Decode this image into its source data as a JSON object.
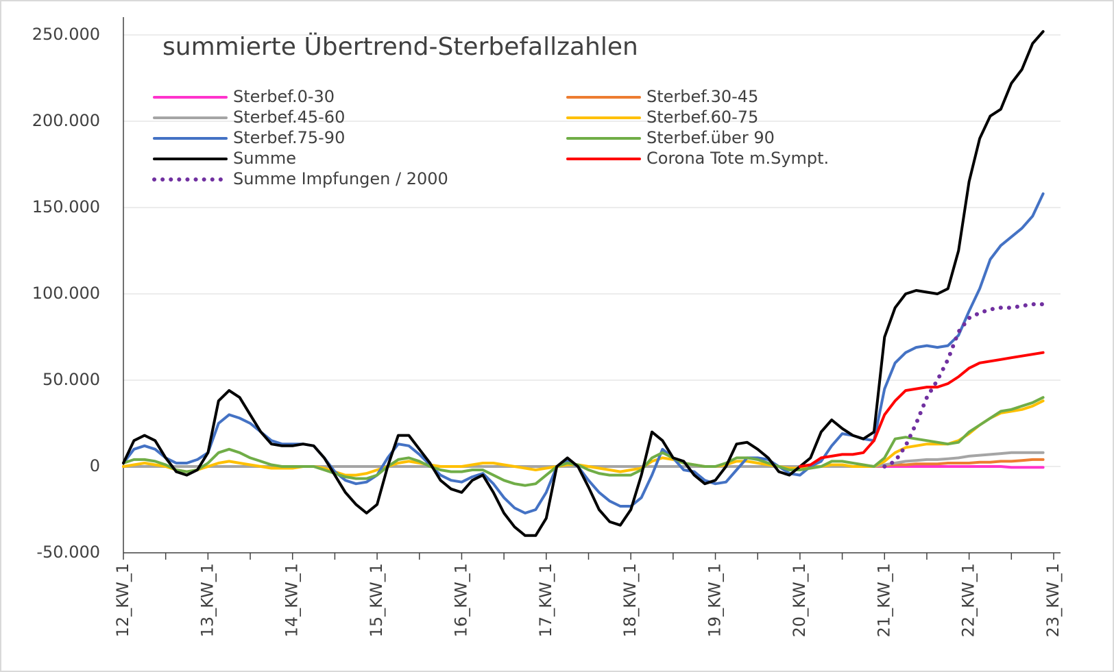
{
  "chart_data": {
    "type": "line",
    "title": "summierte Übertrend-Sterbefallzahlen",
    "categories": [
      "12_KW_1",
      null,
      null,
      null,
      null,
      null,
      null,
      null,
      "13_KW_1",
      null,
      null,
      null,
      null,
      null,
      null,
      null,
      "14_KW_1",
      null,
      null,
      null,
      null,
      null,
      null,
      null,
      "15_KW_1",
      null,
      null,
      null,
      null,
      null,
      null,
      null,
      "16_KW_1",
      null,
      null,
      null,
      null,
      null,
      null,
      null,
      "17_KW_1",
      null,
      null,
      null,
      null,
      null,
      null,
      null,
      "18_KW_1",
      null,
      null,
      null,
      null,
      null,
      null,
      null,
      "19_KW_1",
      null,
      null,
      null,
      null,
      null,
      null,
      null,
      "20_KW_1",
      null,
      null,
      null,
      null,
      null,
      null,
      null,
      "21_KW_1",
      null,
      null,
      null,
      null,
      null,
      null,
      null,
      "22_KW_1",
      null,
      null,
      null,
      null,
      null,
      null,
      null,
      "23_KW_1"
    ],
    "ylim": [
      -50000,
      250000
    ],
    "yticks": [
      {
        "value": -50000,
        "label": "-50.000"
      },
      0,
      {
        "value": 50000,
        "label": "50.000"
      },
      {
        "value": 100000,
        "label": "100.000"
      },
      {
        "value": 150000,
        "label": "150.000"
      },
      {
        "value": 200000,
        "label": "200.000"
      },
      {
        "value": 250000,
        "label": "250.000"
      }
    ],
    "grid": true,
    "series": [
      {
        "name": "Sterbef.0-30",
        "color": "#ff33cc",
        "values": [
          0,
          0,
          0,
          0,
          0,
          0,
          0,
          0,
          0,
          0,
          0,
          0,
          0,
          0,
          0,
          0,
          0,
          0,
          0,
          0,
          0,
          0,
          0,
          0,
          0,
          0,
          0,
          0,
          0,
          0,
          0,
          0,
          0,
          0,
          0,
          0,
          0,
          0,
          0,
          0,
          0,
          0,
          0,
          0,
          0,
          0,
          0,
          0,
          0,
          0,
          0,
          0,
          0,
          0,
          0,
          0,
          0,
          0,
          0,
          0,
          0,
          0,
          0,
          0,
          0,
          0,
          0,
          0,
          0,
          0,
          0,
          0,
          0,
          0,
          0,
          0,
          0,
          0,
          0,
          0,
          0,
          0,
          0,
          0,
          -500,
          -500,
          -500,
          -500,
          null
        ]
      },
      {
        "name": "Sterbef.30-45",
        "color": "#ed7d31",
        "values": [
          0,
          0,
          0,
          0,
          0,
          0,
          0,
          0,
          0,
          0,
          0,
          0,
          0,
          0,
          0,
          0,
          0,
          0,
          0,
          0,
          0,
          0,
          0,
          0,
          0,
          0,
          0,
          0,
          0,
          0,
          0,
          0,
          0,
          0,
          0,
          0,
          0,
          0,
          0,
          0,
          0,
          0,
          0,
          0,
          0,
          0,
          0,
          0,
          0,
          0,
          0,
          0,
          0,
          0,
          0,
          0,
          0,
          0,
          0,
          0,
          0,
          0,
          0,
          0,
          0,
          0,
          0,
          0,
          0,
          0,
          0,
          0,
          500,
          1000,
          1000,
          1500,
          1500,
          1500,
          2000,
          2000,
          2000,
          2500,
          2500,
          3000,
          3000,
          3500,
          4000,
          4000,
          null
        ]
      },
      {
        "name": "Sterbef.45-60",
        "color": "#a5a5a5",
        "values": [
          0,
          0,
          0,
          0,
          0,
          0,
          0,
          0,
          0,
          0,
          0,
          0,
          0,
          0,
          0,
          0,
          0,
          0,
          0,
          0,
          0,
          0,
          0,
          0,
          0,
          0,
          0,
          0,
          0,
          0,
          0,
          0,
          0,
          0,
          0,
          0,
          0,
          0,
          0,
          0,
          0,
          0,
          0,
          0,
          0,
          0,
          0,
          0,
          0,
          0,
          0,
          0,
          0,
          0,
          0,
          0,
          0,
          0,
          0,
          0,
          0,
          0,
          0,
          0,
          0,
          0,
          0,
          0,
          0,
          0,
          0,
          0,
          1000,
          2000,
          3000,
          3500,
          4000,
          4000,
          4500,
          5000,
          6000,
          6500,
          7000,
          7500,
          8000,
          8000,
          8000,
          8000,
          null
        ]
      },
      {
        "name": "Sterbef.60-75",
        "color": "#ffc000",
        "values": [
          0,
          1000,
          2000,
          1000,
          0,
          -2000,
          -3000,
          -2000,
          0,
          2000,
          3000,
          2000,
          1000,
          0,
          -1000,
          -1000,
          -1000,
          0,
          0,
          -1000,
          -3000,
          -5000,
          -5000,
          -4000,
          -2000,
          0,
          2000,
          3000,
          2000,
          1000,
          0,
          0,
          0,
          1000,
          2000,
          2000,
          1000,
          0,
          -1000,
          -2000,
          -1000,
          0,
          1000,
          1000,
          0,
          -1000,
          -2000,
          -3000,
          -2000,
          -1000,
          3000,
          5000,
          4000,
          2000,
          1000,
          0,
          0,
          1000,
          3000,
          3000,
          2000,
          1000,
          0,
          -1000,
          -1000,
          0,
          0,
          1000,
          1000,
          0,
          0,
          0,
          3000,
          8000,
          11000,
          12000,
          13000,
          13000,
          13000,
          15000,
          19000,
          24000,
          28000,
          31000,
          32000,
          33000,
          35000,
          38000,
          null
        ]
      },
      {
        "name": "Sterbef.75-90",
        "color": "#4472c4",
        "values": [
          2000,
          10000,
          12000,
          10000,
          5000,
          2000,
          2000,
          4000,
          8000,
          25000,
          30000,
          28000,
          25000,
          20000,
          15000,
          13000,
          13000,
          13000,
          12000,
          5000,
          -3000,
          -8000,
          -10000,
          -9000,
          -5000,
          5000,
          13000,
          12000,
          7000,
          1000,
          -5000,
          -8000,
          -9000,
          -6000,
          -4000,
          -10000,
          -18000,
          -24000,
          -27000,
          -25000,
          -15000,
          0,
          3000,
          0,
          -8000,
          -15000,
          -20000,
          -23000,
          -23000,
          -18000,
          -5000,
          10000,
          5000,
          -2000,
          -3000,
          -8000,
          -10000,
          -9000,
          -2000,
          5000,
          5000,
          4000,
          0,
          -4000,
          -5000,
          0,
          3000,
          12000,
          19000,
          18000,
          16000,
          15000,
          45000,
          60000,
          66000,
          69000,
          70000,
          69000,
          70000,
          76000,
          90000,
          103000,
          120000,
          128000,
          133000,
          138000,
          145000,
          158000,
          null
        ]
      },
      {
        "name": "Sterbef.über 90",
        "color": "#70ad47",
        "values": [
          2000,
          4000,
          4000,
          3000,
          1000,
          -2000,
          -3000,
          -2000,
          2000,
          8000,
          10000,
          8000,
          5000,
          3000,
          1000,
          0,
          0,
          0,
          0,
          -2000,
          -4000,
          -6000,
          -7000,
          -7000,
          -5000,
          0,
          4000,
          5000,
          3000,
          0,
          -2000,
          -3000,
          -3000,
          -2000,
          -2000,
          -5000,
          -8000,
          -10000,
          -11000,
          -10000,
          -5000,
          0,
          2000,
          1000,
          -2000,
          -4000,
          -5000,
          -5000,
          -5000,
          -2000,
          5000,
          8000,
          5000,
          2000,
          1000,
          0,
          0,
          2000,
          5000,
          5000,
          4000,
          2000,
          0,
          -2000,
          -2000,
          -1000,
          0,
          3000,
          3000,
          2000,
          1000,
          0,
          5000,
          16000,
          17000,
          16000,
          15000,
          14000,
          13000,
          14000,
          20000,
          24000,
          28000,
          32000,
          33000,
          35000,
          37000,
          40000,
          null
        ]
      },
      {
        "name": "Summe",
        "color": "#000000",
        "values": [
          2000,
          15000,
          18000,
          15000,
          5000,
          -3000,
          -5000,
          -2000,
          8000,
          38000,
          44000,
          40000,
          30000,
          20000,
          13000,
          12000,
          12000,
          13000,
          12000,
          5000,
          -5000,
          -15000,
          -22000,
          -27000,
          -22000,
          0,
          18000,
          18000,
          10000,
          2000,
          -8000,
          -13000,
          -15000,
          -8000,
          -5000,
          -15000,
          -27000,
          -35000,
          -40000,
          -40000,
          -30000,
          0,
          5000,
          0,
          -12000,
          -25000,
          -32000,
          -34000,
          -25000,
          -5000,
          20000,
          15000,
          5000,
          3000,
          -5000,
          -10000,
          -8000,
          0,
          13000,
          14000,
          10000,
          5000,
          -3000,
          -5000,
          0,
          5000,
          20000,
          27000,
          22000,
          18000,
          16000,
          20000,
          75000,
          92000,
          100000,
          102000,
          101000,
          100000,
          103000,
          125000,
          165000,
          190000,
          203000,
          207000,
          222000,
          230000,
          245000,
          252000,
          null
        ]
      },
      {
        "name": "Corona Tote m.Sympt.",
        "color": "#ff0000",
        "values": [
          null,
          null,
          null,
          null,
          null,
          null,
          null,
          null,
          null,
          null,
          null,
          null,
          null,
          null,
          null,
          null,
          null,
          null,
          null,
          null,
          null,
          null,
          null,
          null,
          null,
          null,
          null,
          null,
          null,
          null,
          null,
          null,
          null,
          null,
          null,
          null,
          null,
          null,
          null,
          null,
          null,
          null,
          null,
          null,
          null,
          null,
          null,
          null,
          null,
          null,
          null,
          null,
          null,
          null,
          null,
          null,
          null,
          null,
          null,
          null,
          null,
          null,
          null,
          null,
          0,
          1000,
          5000,
          6000,
          7000,
          7000,
          8000,
          15000,
          30000,
          38000,
          44000,
          45000,
          46000,
          46000,
          48000,
          52000,
          57000,
          60000,
          61000,
          62000,
          63000,
          64000,
          65000,
          66000,
          null
        ]
      },
      {
        "name": "Summe Impfungen / 2000",
        "color": "#7030a0",
        "dotted": true,
        "values": [
          null,
          null,
          null,
          null,
          null,
          null,
          null,
          null,
          null,
          null,
          null,
          null,
          null,
          null,
          null,
          null,
          null,
          null,
          null,
          null,
          null,
          null,
          null,
          null,
          null,
          null,
          null,
          null,
          null,
          null,
          null,
          null,
          null,
          null,
          null,
          null,
          null,
          null,
          null,
          null,
          null,
          null,
          null,
          null,
          null,
          null,
          null,
          null,
          null,
          null,
          null,
          null,
          null,
          null,
          null,
          null,
          null,
          null,
          null,
          null,
          null,
          null,
          null,
          null,
          null,
          null,
          null,
          null,
          null,
          null,
          null,
          null,
          0,
          3000,
          12000,
          25000,
          40000,
          50000,
          62000,
          78000,
          86000,
          89000,
          91000,
          92000,
          92000,
          93000,
          94000,
          94000,
          null
        ]
      }
    ]
  }
}
